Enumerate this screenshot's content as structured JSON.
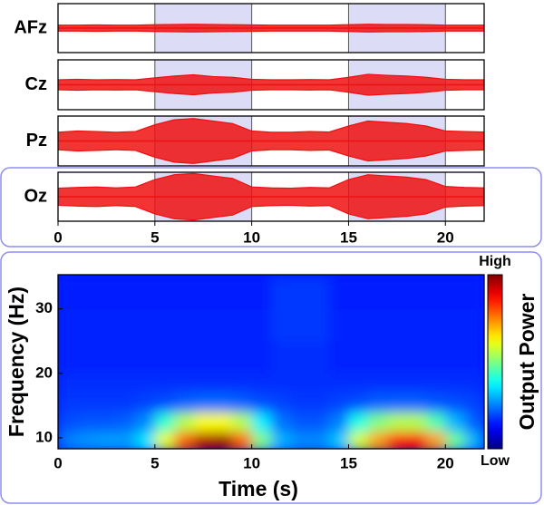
{
  "chart_data": [
    {
      "type": "line",
      "x": [
        0,
        1,
        2,
        3,
        4,
        5,
        6,
        7,
        8,
        9,
        10,
        11,
        12,
        13,
        14,
        15,
        16,
        17,
        18,
        19,
        20,
        21,
        22
      ],
      "xlim": [
        0,
        22
      ],
      "xticks": [
        0,
        5,
        10,
        15,
        20
      ],
      "ylim": [
        -1,
        1
      ],
      "stimulus_periods": [
        [
          5,
          10
        ],
        [
          15,
          20
        ]
      ],
      "series": [
        {
          "name": "AFz",
          "color": "#ee1111",
          "values": [
            0.12,
            0.12,
            0.13,
            0.12,
            0.12,
            0.14,
            0.15,
            0.16,
            0.15,
            0.14,
            0.13,
            0.12,
            0.12,
            0.12,
            0.12,
            0.14,
            0.16,
            0.15,
            0.15,
            0.14,
            0.12,
            0.12,
            0.12
          ]
        },
        {
          "name": "Cz",
          "color": "#ee1111",
          "values": [
            0.2,
            0.22,
            0.2,
            0.21,
            0.2,
            0.28,
            0.35,
            0.4,
            0.33,
            0.3,
            0.22,
            0.2,
            0.2,
            0.21,
            0.2,
            0.3,
            0.42,
            0.38,
            0.35,
            0.3,
            0.22,
            0.2,
            0.2
          ]
        },
        {
          "name": "Pz",
          "color": "#ee1111",
          "values": [
            0.35,
            0.4,
            0.38,
            0.35,
            0.38,
            0.65,
            0.85,
            0.9,
            0.8,
            0.7,
            0.4,
            0.35,
            0.35,
            0.38,
            0.36,
            0.6,
            0.8,
            0.75,
            0.7,
            0.6,
            0.4,
            0.38,
            0.36
          ]
        },
        {
          "name": "Oz",
          "color": "#ee1111",
          "values": [
            0.35,
            0.38,
            0.4,
            0.36,
            0.4,
            0.7,
            0.9,
            0.95,
            0.85,
            0.75,
            0.4,
            0.36,
            0.35,
            0.38,
            0.36,
            0.7,
            0.9,
            0.85,
            0.8,
            0.7,
            0.42,
            0.38,
            0.36
          ]
        }
      ]
    },
    {
      "type": "heatmap",
      "xlabel": "Time (s)",
      "ylabel": "Frequency (Hz)",
      "zlabel": "Output Power",
      "xlim": [
        0,
        22
      ],
      "xticks": [
        0,
        5,
        10,
        15,
        20
      ],
      "ylim": [
        8.3,
        35.3
      ],
      "yticks": [
        10,
        20,
        30
      ],
      "zlim": [
        0,
        1
      ],
      "zticks": [
        {
          "value": 0,
          "label": "Low"
        },
        {
          "value": 1,
          "label": "High"
        }
      ],
      "x_bins": [
        0,
        1,
        2,
        3,
        4,
        5,
        6,
        7,
        8,
        9,
        10,
        11,
        12,
        13,
        14,
        15,
        16,
        17,
        18,
        19,
        20,
        21,
        22
      ],
      "y_bins": [
        8,
        11,
        14,
        17,
        20,
        25,
        30,
        35
      ],
      "values": [
        [
          0.25,
          0.27,
          0.28,
          0.28,
          0.35,
          0.6,
          0.78,
          0.95,
          0.97,
          0.78,
          0.5,
          0.3,
          0.26,
          0.26,
          0.32,
          0.58,
          0.72,
          0.85,
          0.88,
          0.72,
          0.48,
          0.3
        ],
        [
          0.2,
          0.21,
          0.21,
          0.22,
          0.26,
          0.42,
          0.55,
          0.62,
          0.62,
          0.55,
          0.36,
          0.24,
          0.21,
          0.21,
          0.25,
          0.4,
          0.5,
          0.55,
          0.55,
          0.45,
          0.3,
          0.22
        ],
        [
          0.18,
          0.18,
          0.18,
          0.18,
          0.19,
          0.2,
          0.22,
          0.23,
          0.23,
          0.22,
          0.2,
          0.19,
          0.18,
          0.18,
          0.19,
          0.2,
          0.22,
          0.22,
          0.22,
          0.21,
          0.2,
          0.19
        ],
        [
          0.17,
          0.17,
          0.17,
          0.17,
          0.17,
          0.17,
          0.17,
          0.17,
          0.17,
          0.17,
          0.17,
          0.17,
          0.17,
          0.17,
          0.17,
          0.17,
          0.17,
          0.17,
          0.17,
          0.17,
          0.17,
          0.17
        ],
        [
          0.16,
          0.16,
          0.16,
          0.16,
          0.16,
          0.16,
          0.16,
          0.16,
          0.16,
          0.16,
          0.16,
          0.17,
          0.17,
          0.17,
          0.16,
          0.16,
          0.16,
          0.16,
          0.16,
          0.16,
          0.16,
          0.16
        ],
        [
          0.16,
          0.16,
          0.16,
          0.16,
          0.16,
          0.16,
          0.16,
          0.16,
          0.16,
          0.16,
          0.16,
          0.18,
          0.18,
          0.18,
          0.16,
          0.16,
          0.16,
          0.16,
          0.16,
          0.16,
          0.16,
          0.16
        ],
        [
          0.15,
          0.15,
          0.15,
          0.15,
          0.15,
          0.15,
          0.15,
          0.15,
          0.15,
          0.15,
          0.15,
          0.18,
          0.18,
          0.18,
          0.15,
          0.15,
          0.15,
          0.15,
          0.15,
          0.15,
          0.15,
          0.15
        ]
      ]
    }
  ]
}
